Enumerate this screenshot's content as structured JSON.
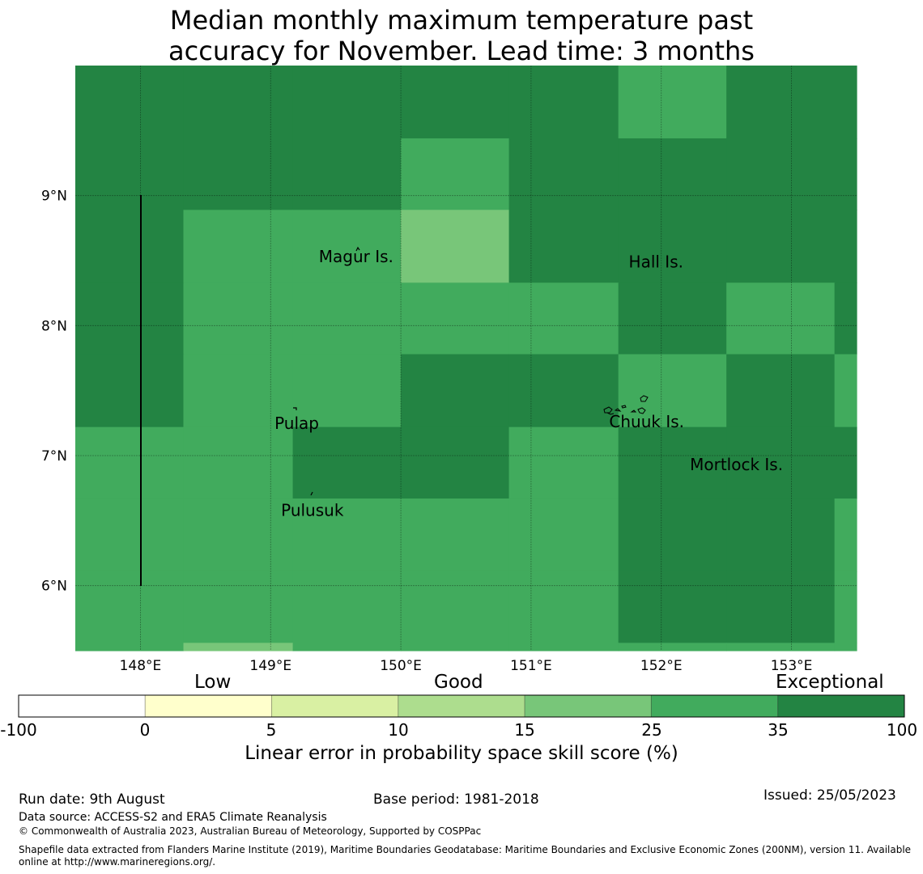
{
  "title": {
    "line1": "Median monthly maximum temperature past",
    "line2": "accuracy for November. Lead time: 3 months"
  },
  "map": {
    "lon_range": [
      147.5,
      153.5
    ],
    "lat_range": [
      5.5,
      10.0
    ],
    "grid_lines": true,
    "lon_ticks": [
      {
        "value": 148,
        "label": "148°E"
      },
      {
        "value": 149,
        "label": "149°E"
      },
      {
        "value": 150,
        "label": "150°E"
      },
      {
        "value": 151,
        "label": "151°E"
      },
      {
        "value": 152,
        "label": "152°E"
      },
      {
        "value": 153,
        "label": "153°E"
      }
    ],
    "lat_ticks": [
      {
        "value": 9,
        "label": "9°N"
      },
      {
        "value": 8,
        "label": "8°N"
      },
      {
        "value": 7,
        "label": "7°N"
      },
      {
        "value": 6,
        "label": "6°N"
      }
    ],
    "places": [
      {
        "name": "Magur Is.",
        "lon": 149.37,
        "lat": 8.53
      },
      {
        "name": "Hall Is.",
        "lon": 151.75,
        "lat": 8.49
      },
      {
        "name": "Pulap",
        "lon": 149.03,
        "lat": 7.25
      },
      {
        "name": "Chuuk Is.",
        "lon": 151.6,
        "lat": 7.26
      },
      {
        "name": "Mortlock Is.",
        "lon": 152.22,
        "lat": 6.93
      },
      {
        "name": "Pulusuk",
        "lon": 149.08,
        "lat": 6.58
      }
    ],
    "category_colors": {
      "exceptional": "#238443",
      "25-35": "#41ab5d",
      "15-25": "#78c679",
      "10-15": "#addd8e"
    }
  },
  "chart_data": {
    "type": "heatmap",
    "title": "Median monthly maximum temperature past accuracy for November. Lead time: 3 months",
    "xlabel": "",
    "ylabel": "",
    "value_unit": "LEPS skill score category",
    "lon_edges": [
      147.5,
      148.33,
      149.17,
      150.0,
      150.83,
      151.67,
      152.5,
      153.33,
      153.5
    ],
    "lat_edges": [
      10.0,
      9.44,
      8.89,
      8.33,
      7.78,
      7.22,
      6.67,
      6.11,
      5.56,
      5.5
    ],
    "grid": [
      [
        ">35",
        ">35",
        ">35",
        ">35",
        ">35",
        "25-35",
        ">35",
        ">35"
      ],
      [
        ">35",
        ">35",
        ">35",
        "25-35",
        ">35",
        ">35",
        ">35",
        ">35"
      ],
      [
        ">35",
        "25-35",
        "25-35",
        "15-25",
        ">35",
        ">35",
        ">35",
        ">35"
      ],
      [
        ">35",
        "25-35",
        "25-35",
        "25-35",
        "25-35",
        ">35",
        "25-35",
        ">35"
      ],
      [
        ">35",
        "25-35",
        "25-35",
        ">35",
        ">35",
        "25-35",
        ">35",
        "25-35"
      ],
      [
        "25-35",
        "25-35",
        ">35",
        ">35",
        "25-35",
        ">35",
        ">35",
        ">35"
      ],
      [
        "25-35",
        "25-35",
        "25-35",
        "25-35",
        "25-35",
        ">35",
        ">35",
        "25-35"
      ],
      [
        "25-35",
        "25-35",
        "25-35",
        "25-35",
        "25-35",
        ">35",
        ">35",
        "25-35"
      ],
      [
        "25-35",
        "15-25",
        "25-35",
        "25-35",
        "25-35",
        "25-35",
        "25-35",
        "25-35"
      ]
    ]
  },
  "colorbar": {
    "categories": [
      "Low",
      "Good",
      "Exceptional"
    ],
    "ticks": [
      "-100",
      "0",
      "5",
      "10",
      "15",
      "25",
      "35",
      "100"
    ],
    "colors": [
      "#ffffff",
      "#ffffcc",
      "#d9f0a3",
      "#addd8e",
      "#78c679",
      "#41ab5d",
      "#238443"
    ],
    "label": "Linear error in probability space skill score (%)"
  },
  "footer": {
    "run_date": "Run date: 9th August",
    "base_period": "Base period: 1981-2018",
    "issued": "Issued: 25/05/2023",
    "data_source": "Data source: ACCESS-S2 and ERA5 Climate Reanalysis",
    "copyright": "© Commonwealth of Australia 2023, Australian Bureau of Meteorology, Supported by COSPPac",
    "shapefile_line1": "Shapefile data extracted from Flanders Marine Institute (2019), Maritime Boundaries Geodatabase: Maritime Boundaries and Exclusive Economic Zones (200NM), version 11. Available",
    "shapefile_line2": "online at http://www.marineregions.org/."
  }
}
